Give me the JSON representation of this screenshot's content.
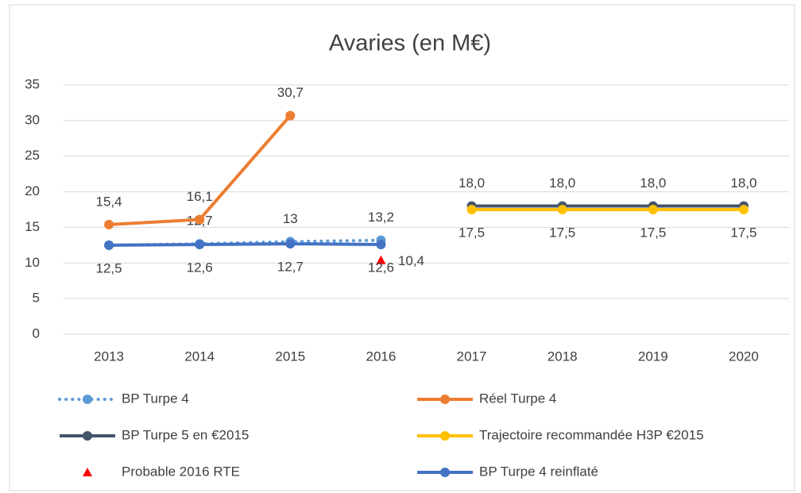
{
  "chart_data": {
    "type": "line",
    "title": "Avaries (en M€)",
    "categories": [
      "2013",
      "2014",
      "2015",
      "2016",
      "2017",
      "2018",
      "2019",
      "2020"
    ],
    "ylim": [
      0,
      35
    ],
    "yticks": [
      0,
      5,
      10,
      15,
      20,
      25,
      30,
      35
    ],
    "grid": true,
    "series": [
      {
        "name": "BP Turpe 4",
        "color": "#5b9bd5",
        "style": "dotted",
        "marker": "circle",
        "values": [
          12.5,
          12.7,
          13,
          13.2,
          null,
          null,
          null,
          null
        ],
        "value_labels": [
          null,
          "12,7",
          "13",
          "13,2",
          null,
          null,
          null,
          null
        ]
      },
      {
        "name": "Réel Turpe 4",
        "color": "#ed7d31",
        "style": "solid",
        "marker": "circle",
        "values": [
          15.4,
          16.1,
          30.7,
          null,
          null,
          null,
          null,
          null
        ],
        "value_labels": [
          "15,4",
          "16,1",
          "30,7",
          null,
          null,
          null,
          null,
          null
        ]
      },
      {
        "name": "BP Turpe 5 en €2015",
        "color": "#44546a",
        "style": "solid",
        "marker": "circle",
        "values": [
          null,
          null,
          null,
          null,
          18,
          18,
          18,
          18
        ],
        "value_labels": [
          null,
          null,
          null,
          null,
          "18,0",
          "18,0",
          "18,0",
          "18,0"
        ]
      },
      {
        "name": "Trajectoire recommandée H3P €2015",
        "color": "#ffc000",
        "style": "solid",
        "marker": "circle",
        "values": [
          null,
          null,
          null,
          null,
          17.5,
          17.5,
          17.5,
          17.5
        ],
        "value_labels": [
          null,
          null,
          null,
          null,
          "17,5",
          "17,5",
          "17,5",
          "17,5"
        ]
      },
      {
        "name": "Probable 2016 RTE",
        "color": "#ff0000",
        "style": "none",
        "marker": "triangle",
        "values": [
          null,
          null,
          null,
          10.4,
          null,
          null,
          null,
          null
        ],
        "value_labels": [
          null,
          null,
          null,
          "10,4",
          null,
          null,
          null,
          null
        ]
      },
      {
        "name": "BP Turpe 4 reinflaté",
        "color": "#4472c4",
        "style": "solid",
        "marker": "circle",
        "values": [
          12.5,
          12.6,
          12.7,
          12.6,
          null,
          null,
          null,
          null
        ],
        "value_labels": [
          "12,5",
          "12,6",
          "12,7",
          "12,6",
          null,
          null,
          null,
          null
        ]
      }
    ]
  }
}
